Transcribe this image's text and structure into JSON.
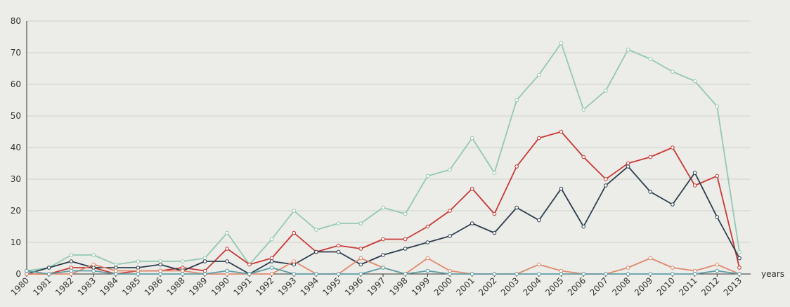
{
  "chart_data": {
    "type": "line",
    "title": "",
    "xlabel": "years",
    "ylabel": "",
    "ylim": [
      0,
      80
    ],
    "yticks": [
      0,
      10,
      20,
      30,
      40,
      50,
      60,
      70,
      80
    ],
    "grid": "horizontal",
    "legend": "none",
    "categories": [
      "1980",
      "1981",
      "1982",
      "1983",
      "1984",
      "1985",
      "1986",
      "1988",
      "1989",
      "1990",
      "1991",
      "1992",
      "1993",
      "1994",
      "1995",
      "1996",
      "1997",
      "1998",
      "1999",
      "2000",
      "2001",
      "2002",
      "2003",
      "2004",
      "2005",
      "2006",
      "2007",
      "2008",
      "2009",
      "2010",
      "2011",
      "2012",
      "2013"
    ],
    "series": [
      {
        "color": "#93c9b2",
        "values": [
          1,
          2,
          6,
          6,
          3,
          4,
          4,
          4,
          5,
          13,
          3,
          11,
          20,
          14,
          16,
          16,
          21,
          19,
          31,
          33,
          43,
          32,
          55,
          63,
          73,
          52,
          58,
          71,
          68,
          64,
          61,
          53,
          7
        ]
      },
      {
        "color": "#c83a37",
        "values": [
          0,
          0,
          2,
          2,
          0,
          1,
          1,
          2,
          1,
          8,
          3,
          5,
          13,
          7,
          9,
          8,
          11,
          11,
          15,
          20,
          27,
          19,
          34,
          43,
          45,
          37,
          30,
          35,
          37,
          40,
          28,
          31,
          2
        ]
      },
      {
        "color": "#2d3e4f",
        "values": [
          0,
          2,
          4,
          2,
          2,
          2,
          3,
          1,
          4,
          4,
          0,
          4,
          3,
          7,
          7,
          3,
          6,
          8,
          10,
          12,
          16,
          13,
          21,
          17,
          27,
          15,
          28,
          34,
          26,
          22,
          32,
          18,
          5
        ]
      },
      {
        "color": "#e08a6e",
        "values": [
          0,
          0,
          0,
          3,
          1,
          1,
          1,
          1,
          0,
          0,
          0,
          0,
          4,
          0,
          0,
          5,
          2,
          0,
          5,
          1,
          0,
          0,
          0,
          3,
          1,
          0,
          0,
          2,
          5,
          2,
          1,
          3,
          0
        ]
      },
      {
        "color": "#5e9ea6",
        "values": [
          1,
          0,
          1,
          1,
          0,
          0,
          0,
          0,
          0,
          1,
          0,
          2,
          0,
          0,
          0,
          0,
          2,
          0,
          1,
          0,
          0,
          0,
          0,
          0,
          0,
          0,
          0,
          0,
          0,
          0,
          0,
          1,
          0
        ]
      }
    ]
  }
}
